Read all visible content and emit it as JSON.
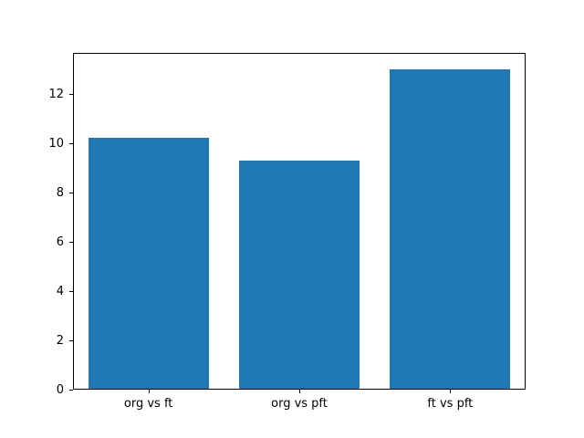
{
  "chart_data": {
    "type": "bar",
    "title": "",
    "xlabel": "",
    "ylabel": "",
    "categories": [
      "org vs ft",
      "org vs pft",
      "ft vs pft"
    ],
    "values": [
      10.2,
      9.3,
      13.0
    ],
    "yticks": [
      0,
      2,
      4,
      6,
      8,
      10,
      12
    ],
    "ylim": [
      0,
      13.65
    ],
    "bar_width_fraction": 0.8,
    "bar_color": "#1f77b4",
    "axes_edge_color": "#000000",
    "background_color": "#ffffff",
    "grid": false,
    "legend": "none"
  }
}
